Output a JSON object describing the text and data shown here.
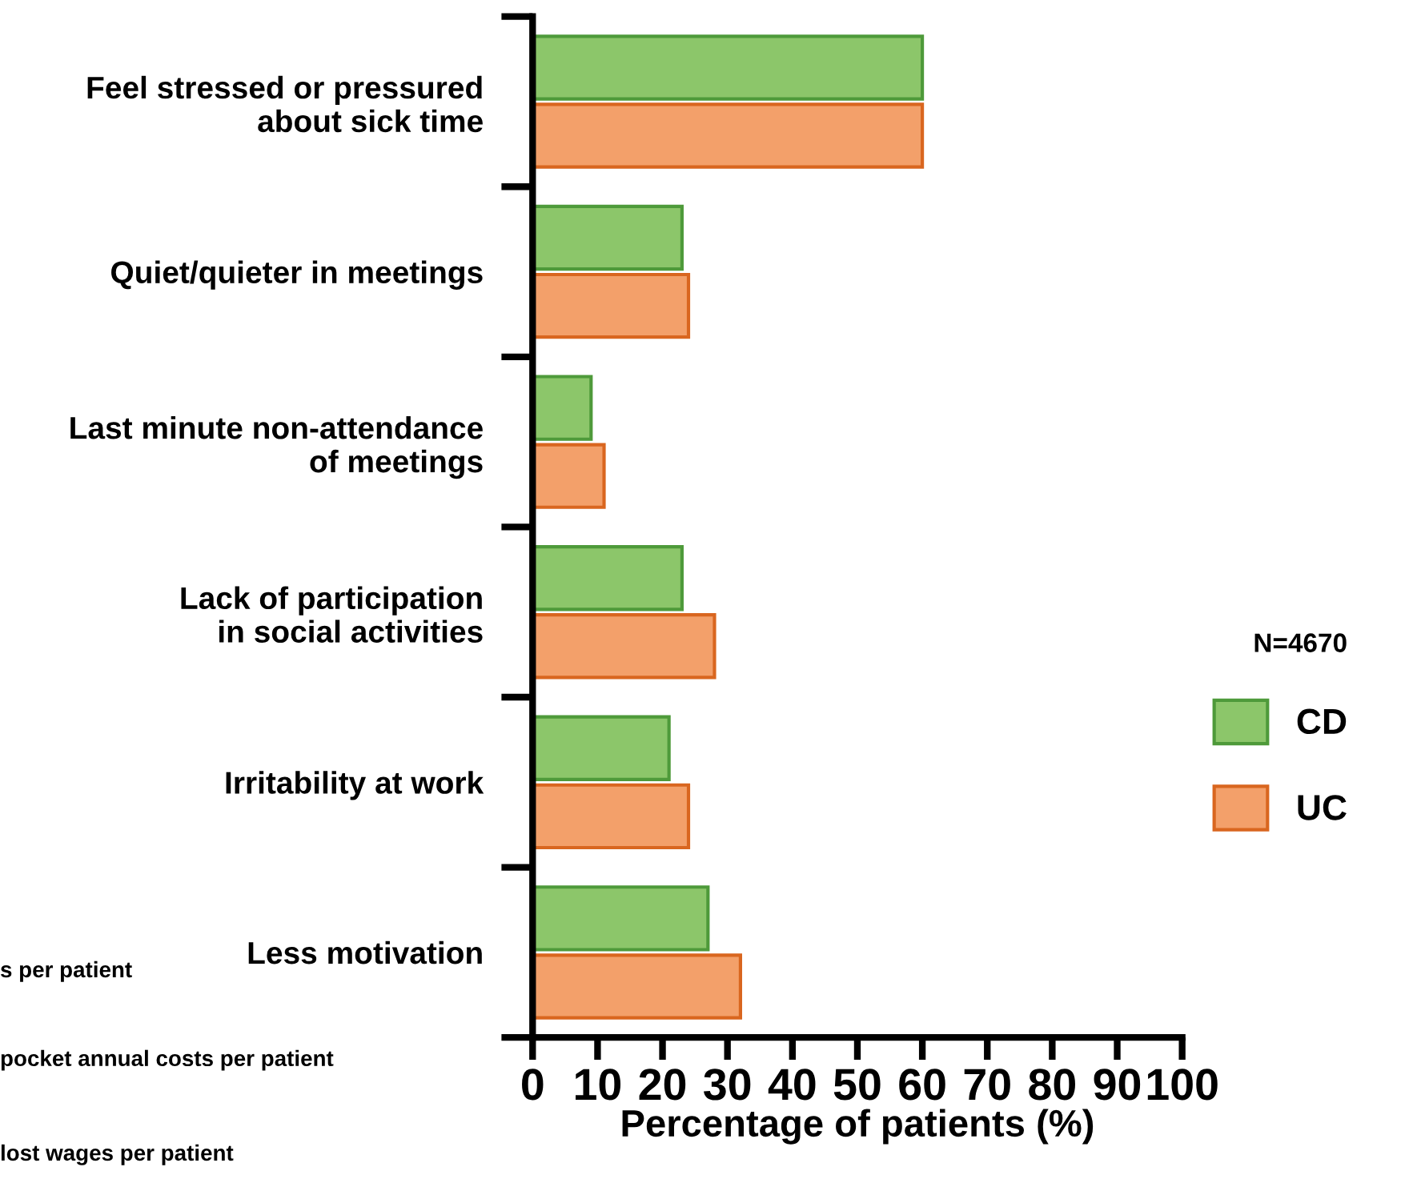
{
  "chart_data": {
    "type": "bar",
    "orientation": "horizontal",
    "categories": [
      "Feel stressed or pressured\nabout sick time",
      "Quiet/quieter in meetings",
      "Last minute non-attendance\nof meetings",
      "Lack of participation\nin social activities",
      "Irritability at work",
      "Less motivation"
    ],
    "series": [
      {
        "name": "CD",
        "color": "#8cc66a",
        "values": [
          60,
          23,
          9,
          23,
          21,
          27
        ]
      },
      {
        "name": "UC",
        "color": "#f3a06a",
        "values": [
          60,
          24,
          11,
          28,
          24,
          32
        ]
      }
    ],
    "xlabel": "Percentage of patients (%)",
    "xlim": [
      0,
      100
    ],
    "xticks": [
      0,
      10,
      20,
      30,
      40,
      50,
      60,
      70,
      80,
      90,
      100
    ],
    "legend": "right",
    "legend_title": "N=4670",
    "grid": false,
    "annotations": [
      "s per patient",
      "pocket annual costs per patient",
      "lost wages per patient"
    ]
  }
}
